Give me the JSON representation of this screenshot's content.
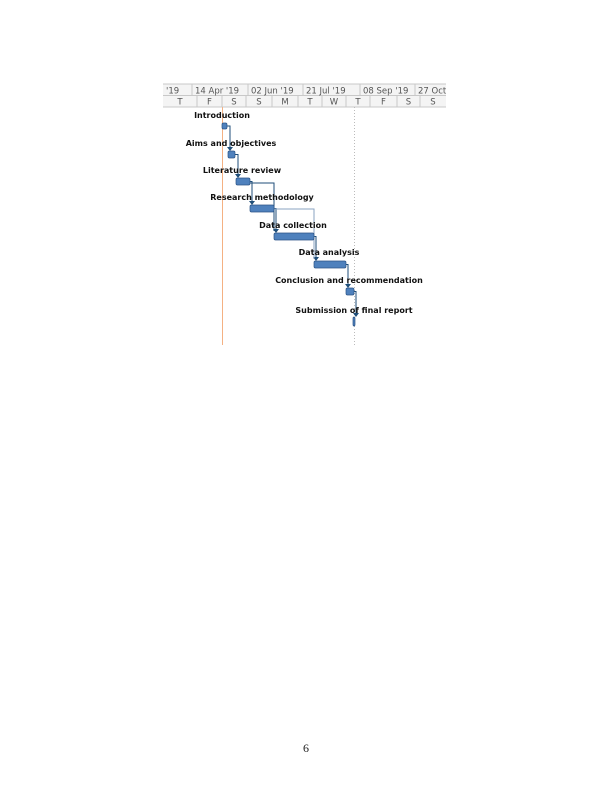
{
  "gantt": {
    "timescale_top": [
      "'19",
      "14 Apr '19",
      "02 Jun '19",
      "21 Jul '19",
      "08 Sep '19",
      "27 Oct"
    ],
    "timescale_bottom": [
      "T",
      "F",
      "S",
      "S",
      "M",
      "T",
      "W",
      "T",
      "F",
      "S",
      "S"
    ],
    "tasks": [
      "Introduction",
      "Aims and objectives",
      "Literature review",
      "Research methodology",
      "Data collection",
      "Data analysis",
      "Conclusion and recommendation",
      "Submission of final report"
    ],
    "colors": {
      "bar": "#4f81bd",
      "bar_edge": "#2c5486",
      "link": "#1f4e79",
      "today_line": "#f4b183",
      "grid": "#c8c8c8"
    }
  },
  "footer": {
    "page_number": "6"
  }
}
